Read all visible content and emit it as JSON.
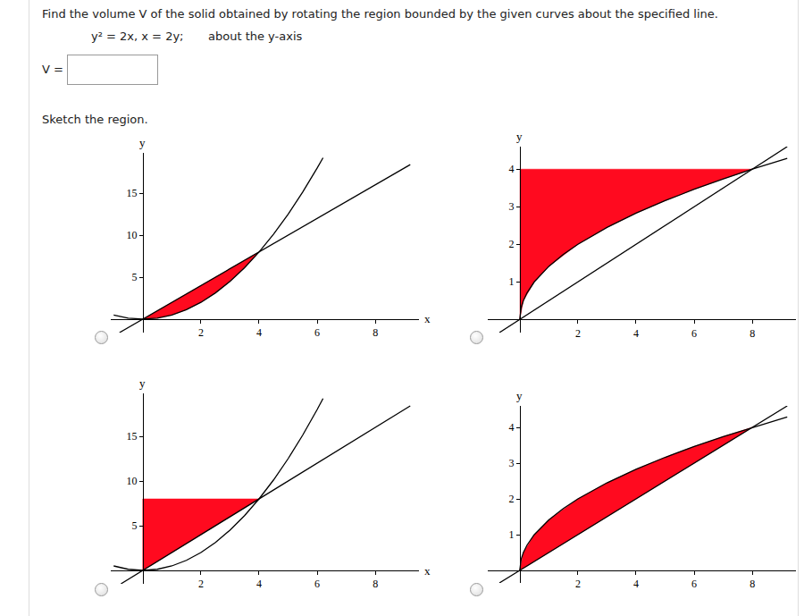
{
  "page": {
    "question": "Find the volume V of the solid obtained by rotating the region bounded by the given curves about the specified line.",
    "curves": "y² = 2x, x = 2y;",
    "rotation_axis": "about the y-axis",
    "answer_label": "V =",
    "sketch_prompt": "Sketch the region."
  },
  "chart_data": [
    {
      "type": "line",
      "xlabel": "x",
      "ylabel": "y",
      "xlim": [
        -1.1,
        9.5
      ],
      "ylim": [
        -1.6,
        19.8
      ],
      "xticks": [
        2,
        4,
        6,
        8
      ],
      "yticks": [
        5,
        10,
        15
      ],
      "grid": false,
      "series": [
        {
          "type": "area",
          "color": "#ff0a1f",
          "x": [
            0,
            4,
            3.5,
            3,
            2.5,
            2,
            1.5,
            1,
            0.5,
            0
          ],
          "values": [
            0,
            8,
            6.125,
            4.5,
            3.125,
            2,
            1.125,
            0.5,
            0.125,
            0
          ]
        },
        {
          "type": "line",
          "color": "#000000",
          "x": [
            -1,
            -0.5,
            0,
            0.5,
            1,
            1.5,
            2,
            2.5,
            3,
            3.5,
            4,
            4.5,
            5,
            5.5,
            6,
            6.2
          ],
          "values": [
            0.5,
            0.125,
            0,
            0.125,
            0.5,
            1.125,
            2,
            3.125,
            4.5,
            6.125,
            8,
            10.125,
            12.5,
            15.125,
            18,
            19.22
          ]
        },
        {
          "type": "line",
          "color": "#000000",
          "x": [
            -0.8,
            9.2
          ],
          "values": [
            -1.6,
            18.4
          ]
        }
      ]
    },
    {
      "type": "line",
      "ylabel": "y",
      "xlim": [
        -1.1,
        9.5
      ],
      "ylim": [
        -0.35,
        4.6
      ],
      "xticks": [
        2,
        4,
        6,
        8
      ],
      "yticks": [
        1,
        2,
        3,
        4
      ],
      "grid": false,
      "series": [
        {
          "type": "area",
          "color": "#ff0a1f",
          "x": [
            0,
            0.125,
            0.5,
            1,
            2,
            3,
            4,
            5,
            6,
            7,
            8,
            0
          ],
          "values": [
            0,
            0.5,
            1,
            1.414,
            2,
            2.449,
            2.828,
            3.162,
            3.464,
            3.742,
            4,
            4
          ]
        },
        {
          "type": "line",
          "color": "#000000",
          "x": [
            0,
            0.05,
            0.125,
            0.25,
            0.5,
            1,
            1.5,
            2,
            3,
            4,
            5,
            6,
            7,
            8,
            9.2
          ],
          "values": [
            0,
            0.316,
            0.5,
            0.707,
            1,
            1.414,
            1.732,
            2,
            2.449,
            2.828,
            3.162,
            3.464,
            3.742,
            4,
            4.29
          ]
        },
        {
          "type": "line",
          "color": "#000000",
          "x": [
            -0.7,
            9.2
          ],
          "values": [
            -0.35,
            4.6
          ]
        }
      ]
    },
    {
      "type": "line",
      "xlabel": "x",
      "ylabel": "y",
      "xlim": [
        -1.1,
        9.5
      ],
      "ylim": [
        -1.5,
        19.8
      ],
      "xticks": [
        2,
        4,
        6,
        8
      ],
      "yticks": [
        5,
        10,
        15
      ],
      "grid": false,
      "series": [
        {
          "type": "area",
          "color": "#ff0a1f",
          "x": [
            0,
            4,
            0,
            0
          ],
          "values": [
            0,
            8,
            8,
            0
          ]
        },
        {
          "type": "line",
          "color": "#000000",
          "x": [
            -1,
            -0.5,
            0,
            0.5,
            1,
            1.5,
            2,
            2.5,
            3,
            3.5,
            4,
            4.5,
            5,
            5.5,
            6,
            6.2
          ],
          "values": [
            0.5,
            0.125,
            0,
            0.125,
            0.5,
            1.125,
            2,
            3.125,
            4.5,
            6.125,
            8,
            10.125,
            12.5,
            15.125,
            18,
            19.22
          ]
        },
        {
          "type": "line",
          "color": "#000000",
          "x": [
            -0.75,
            9.2
          ],
          "values": [
            -1.5,
            18.4
          ]
        }
      ]
    },
    {
      "type": "line",
      "ylabel": "y",
      "xlim": [
        -1.1,
        9.5
      ],
      "ylim": [
        -0.35,
        4.6
      ],
      "xticks": [
        2,
        4,
        6,
        8
      ],
      "yticks": [
        1,
        2,
        3,
        4
      ],
      "grid": false,
      "series": [
        {
          "type": "area",
          "color": "#ff0a1f",
          "x": [
            0,
            0.125,
            0.5,
            1,
            2,
            3,
            4,
            5,
            6,
            7,
            8,
            0
          ],
          "values": [
            0,
            0.5,
            1,
            1.414,
            2,
            2.449,
            2.828,
            3.162,
            3.464,
            3.742,
            4,
            0
          ]
        },
        {
          "type": "line",
          "color": "#000000",
          "x": [
            0,
            0.05,
            0.125,
            0.25,
            0.5,
            1,
            1.5,
            2,
            3,
            4,
            5,
            6,
            7,
            8,
            9.2
          ],
          "values": [
            0,
            0.316,
            0.5,
            0.707,
            1,
            1.414,
            1.732,
            2,
            2.449,
            2.828,
            3.162,
            3.464,
            3.742,
            4,
            4.29
          ]
        },
        {
          "type": "line",
          "color": "#000000",
          "x": [
            -0.7,
            9.2
          ],
          "values": [
            -0.35,
            4.6
          ]
        }
      ]
    }
  ]
}
